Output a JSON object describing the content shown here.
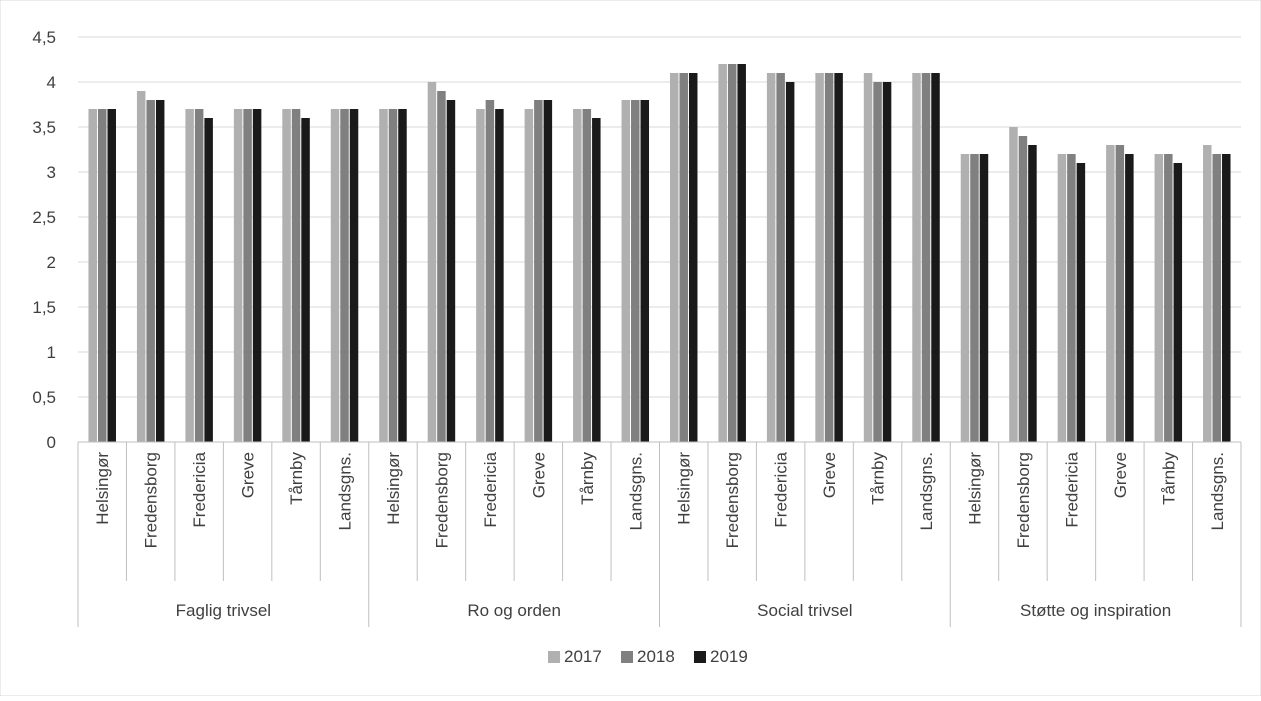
{
  "chart_data": {
    "type": "bar",
    "title": "",
    "xlabel": "",
    "ylabel": "",
    "ylim": [
      0,
      4.5
    ],
    "yticks": [
      "0",
      "0,5",
      "1",
      "1,5",
      "2",
      "2,5",
      "3",
      "3,5",
      "4",
      "4,5"
    ],
    "grid": true,
    "legend_position": "bottom",
    "groups": [
      {
        "label": "Faglig trivsel",
        "categories": [
          "Helsingør",
          "Fredensborg",
          "Fredericia",
          "Greve",
          "Tårnby",
          "Landsgns."
        ]
      },
      {
        "label": "Ro og orden",
        "categories": [
          "Helsingør",
          "Fredensborg",
          "Fredericia",
          "Greve",
          "Tårnby",
          "Landsgns."
        ]
      },
      {
        "label": "Social trivsel",
        "categories": [
          "Helsingør",
          "Fredensborg",
          "Fredericia",
          "Greve",
          "Tårnby",
          "Landsgns."
        ]
      },
      {
        "label": "Støtte og inspiration",
        "categories": [
          "Helsingør",
          "Fredensborg",
          "Fredericia",
          "Greve",
          "Tårnby",
          "Landsgns."
        ]
      }
    ],
    "series": [
      {
        "name": "2017",
        "color": "#b0b0b0",
        "values": [
          3.7,
          3.9,
          3.7,
          3.7,
          3.7,
          3.7,
          3.7,
          4.0,
          3.7,
          3.7,
          3.7,
          3.8,
          4.1,
          4.2,
          4.1,
          4.1,
          4.1,
          4.1,
          3.2,
          3.5,
          3.2,
          3.3,
          3.2,
          3.3
        ]
      },
      {
        "name": "2018",
        "color": "#808080",
        "values": [
          3.7,
          3.8,
          3.7,
          3.7,
          3.7,
          3.7,
          3.7,
          3.9,
          3.8,
          3.8,
          3.7,
          3.8,
          4.1,
          4.2,
          4.1,
          4.1,
          4.0,
          4.1,
          3.2,
          3.4,
          3.2,
          3.3,
          3.2,
          3.2
        ]
      },
      {
        "name": "2019",
        "color": "#1a1a1a",
        "values": [
          3.7,
          3.8,
          3.6,
          3.7,
          3.6,
          3.7,
          3.7,
          3.8,
          3.7,
          3.8,
          3.6,
          3.8,
          4.1,
          4.2,
          4.0,
          4.1,
          4.0,
          4.1,
          3.2,
          3.3,
          3.1,
          3.2,
          3.1,
          3.2
        ]
      }
    ]
  }
}
